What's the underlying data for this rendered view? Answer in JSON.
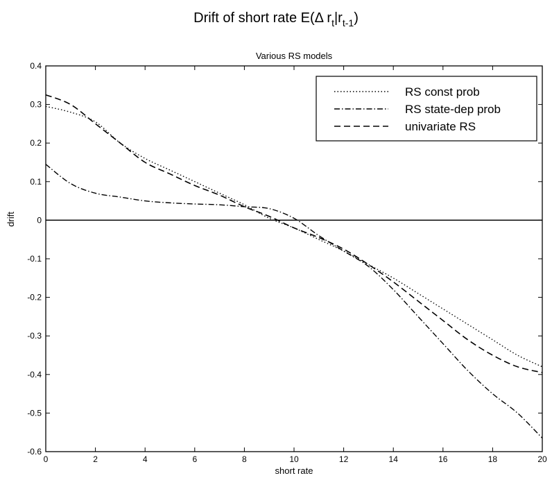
{
  "chart_data": {
    "type": "line",
    "title": "Drift of short rate E(Δ r",
    "title_sub1": "t",
    "title_mid": "|r",
    "title_sub2": "t-1",
    "title_end": ")",
    "subtitle": "Various RS models",
    "xlabel": "short rate",
    "ylabel": "drift",
    "xlim": [
      0,
      20
    ],
    "ylim": [
      -0.6,
      0.4
    ],
    "xticks": [
      0,
      2,
      4,
      6,
      8,
      10,
      12,
      14,
      16,
      18,
      20
    ],
    "xtick_labels": [
      "0",
      "2",
      "4",
      "6",
      "8",
      "10",
      "12",
      "14",
      "16",
      "18",
      "20"
    ],
    "yticks": [
      0.4,
      0.3,
      0.2,
      0.1,
      0,
      -0.1,
      -0.2,
      -0.3,
      -0.4,
      -0.5,
      -0.6
    ],
    "ytick_labels": [
      "0.4",
      "0.3",
      "0.2",
      "0.1",
      "0",
      "-0.1",
      "-0.2",
      "-0.3",
      "-0.4",
      "-0.5",
      "-0.6"
    ],
    "grid": false,
    "legend_position": "top-right",
    "reference_line_y": 0,
    "series": [
      {
        "name": "RS const prob",
        "dash": "dotted",
        "x": [
          0,
          1,
          2,
          3,
          4,
          5,
          6,
          7,
          8,
          9,
          10,
          11,
          12,
          13,
          14,
          15,
          16,
          17,
          18,
          19,
          20
        ],
        "y": [
          0.295,
          0.28,
          0.255,
          0.2,
          0.16,
          0.13,
          0.1,
          0.07,
          0.04,
          0.005,
          -0.02,
          -0.05,
          -0.08,
          -0.115,
          -0.15,
          -0.19,
          -0.23,
          -0.27,
          -0.31,
          -0.35,
          -0.38
        ]
      },
      {
        "name": "RS state-dep prob",
        "dash": "dashdot",
        "x": [
          0,
          1,
          2,
          3,
          4,
          5,
          6,
          7,
          8,
          9,
          10,
          11,
          12,
          13,
          14,
          15,
          16,
          17,
          18,
          19,
          20
        ],
        "y": [
          0.145,
          0.095,
          0.07,
          0.06,
          0.05,
          0.045,
          0.042,
          0.04,
          0.035,
          0.03,
          0.005,
          -0.04,
          -0.08,
          -0.12,
          -0.18,
          -0.25,
          -0.32,
          -0.39,
          -0.45,
          -0.5,
          -0.565
        ]
      },
      {
        "name": "univariate RS",
        "dash": "dashed",
        "x": [
          0,
          1,
          2,
          3,
          4,
          5,
          6,
          7,
          8,
          9,
          10,
          11,
          12,
          13,
          14,
          15,
          16,
          17,
          18,
          19,
          20
        ],
        "y": [
          0.325,
          0.3,
          0.25,
          0.2,
          0.15,
          0.12,
          0.09,
          0.065,
          0.035,
          0.01,
          -0.02,
          -0.045,
          -0.075,
          -0.115,
          -0.16,
          -0.21,
          -0.26,
          -0.31,
          -0.35,
          -0.38,
          -0.395
        ]
      }
    ]
  }
}
